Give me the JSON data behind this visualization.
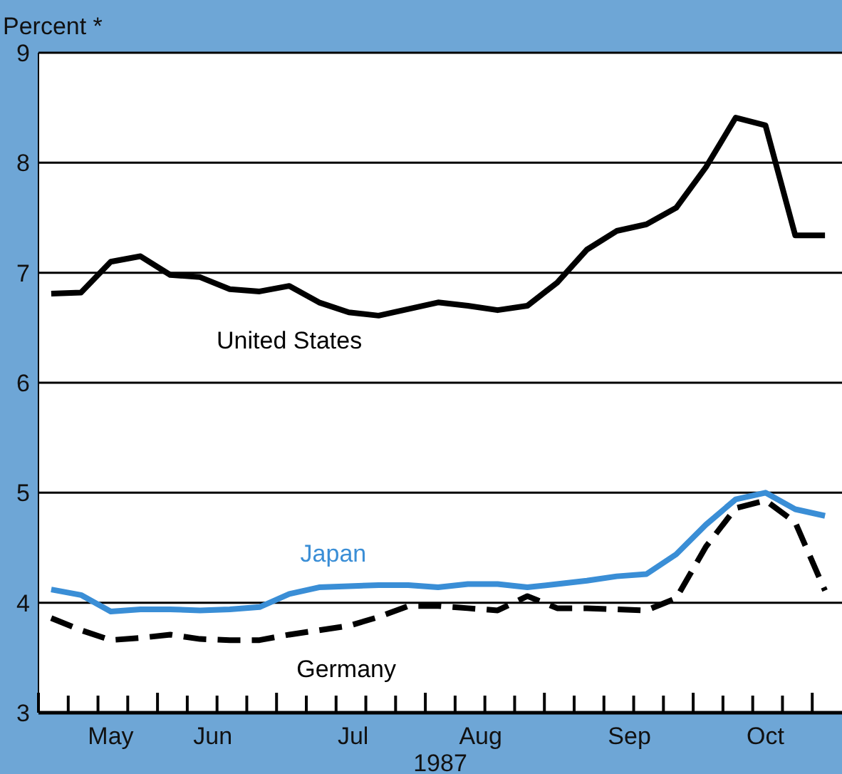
{
  "chart_data": {
    "type": "line",
    "ylabel": "Percent *",
    "xlabel": "1987",
    "x": [
      "1987-05-09",
      "1987-05-16",
      "1987-05-23",
      "1987-05-30",
      "1987-06-06",
      "1987-06-13",
      "1987-06-20",
      "1987-06-27",
      "1987-07-04",
      "1987-07-11",
      "1987-07-18",
      "1987-07-25",
      "1987-08-01",
      "1987-08-08",
      "1987-08-15",
      "1987-08-22",
      "1987-08-29",
      "1987-09-05",
      "1987-09-12",
      "1987-09-19",
      "1987-09-26",
      "1987-10-03",
      "1987-10-10",
      "1987-10-17",
      "1987-10-24",
      "1987-10-31",
      "1987-11-07"
    ],
    "series": [
      {
        "name": "United States",
        "color": "#000000",
        "line_style": "solid",
        "values": [
          6.81,
          6.82,
          7.1,
          7.15,
          6.98,
          6.96,
          6.85,
          6.83,
          6.88,
          6.73,
          6.64,
          6.61,
          6.67,
          6.73,
          6.7,
          6.66,
          6.7,
          6.91,
          7.21,
          7.38,
          7.44,
          7.59,
          7.96,
          8.41,
          8.34,
          7.34,
          7.34
        ]
      },
      {
        "name": "Japan",
        "color": "#3a8ed6",
        "line_style": "solid",
        "values": [
          4.12,
          4.07,
          3.92,
          3.94,
          3.94,
          3.93,
          3.94,
          3.96,
          4.08,
          4.14,
          4.15,
          4.16,
          4.16,
          4.14,
          4.17,
          4.17,
          4.14,
          4.17,
          4.2,
          4.24,
          4.26,
          4.44,
          4.71,
          4.94,
          5.0,
          4.85,
          4.79
        ]
      },
      {
        "name": "Germany",
        "color": "#000000",
        "line_style": "dashed",
        "values": [
          3.86,
          3.75,
          3.66,
          3.68,
          3.71,
          3.67,
          3.66,
          3.66,
          3.71,
          3.75,
          3.79,
          3.87,
          3.97,
          3.97,
          3.95,
          3.93,
          4.06,
          3.95,
          3.95,
          3.94,
          3.93,
          4.04,
          4.51,
          4.86,
          4.93,
          4.73,
          4.11
        ]
      }
    ],
    "xlim": [
      "1987-05-06",
      "1987-11-11"
    ],
    "xticks": [
      {
        "value": "1987-05-06",
        "label": null
      },
      {
        "value": "1987-05-13",
        "label": null
      },
      {
        "value": "1987-05-20",
        "label": null
      },
      {
        "value": "1987-05-27",
        "label": null
      },
      {
        "value": "1987-06-03",
        "label": null
      },
      {
        "value": "1987-06-10",
        "label": null
      },
      {
        "value": "1987-06-17",
        "label": null
      },
      {
        "value": "1987-06-24",
        "label": null
      },
      {
        "value": "1987-07-01",
        "label": null
      },
      {
        "value": "1987-07-08",
        "label": null
      },
      {
        "value": "1987-07-15",
        "label": null
      },
      {
        "value": "1987-07-22",
        "label": null
      },
      {
        "value": "1987-07-29",
        "label": null
      },
      {
        "value": "1987-08-05",
        "label": null
      },
      {
        "value": "1987-08-12",
        "label": null
      },
      {
        "value": "1987-08-19",
        "label": null
      },
      {
        "value": "1987-08-26",
        "label": null
      },
      {
        "value": "1987-09-02",
        "label": null
      },
      {
        "value": "1987-09-09",
        "label": null
      },
      {
        "value": "1987-09-16",
        "label": null
      },
      {
        "value": "1987-09-23",
        "label": null
      },
      {
        "value": "1987-09-30",
        "label": null
      },
      {
        "value": "1987-10-07",
        "label": null
      },
      {
        "value": "1987-10-14",
        "label": null
      },
      {
        "value": "1987-10-21",
        "label": null
      },
      {
        "value": "1987-10-28",
        "label": null
      },
      {
        "value": "1987-11-04",
        "label": null
      },
      {
        "value": "1987-05-23",
        "label": "May"
      },
      {
        "value": "1987-06-16",
        "label": "Jun"
      },
      {
        "value": "1987-07-19",
        "label": "Jul"
      },
      {
        "value": "1987-08-18",
        "label": "Aug"
      },
      {
        "value": "1987-09-22",
        "label": "Sep"
      },
      {
        "value": "1987-10-24",
        "label": "Oct"
      }
    ],
    "ylim": [
      3,
      9
    ],
    "yticks": [
      3,
      4,
      5,
      6,
      7,
      8,
      9
    ],
    "grid": "y",
    "legend": false
  }
}
